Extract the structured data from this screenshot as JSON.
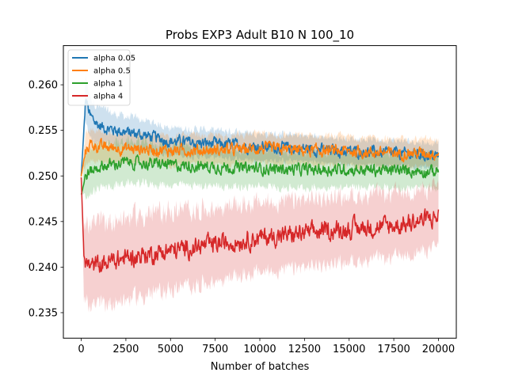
{
  "chart_data": {
    "type": "line",
    "title": "Probs EXP3 Adult B10 N 100_10",
    "xlabel": "Number of batches",
    "ylabel": "",
    "xlim": [
      -1000,
      21000
    ],
    "ylim": [
      0.2322,
      0.2643
    ],
    "xticks": [
      0,
      2500,
      5000,
      7500,
      10000,
      12500,
      15000,
      17500,
      20000
    ],
    "yticks": [
      0.235,
      0.24,
      0.245,
      0.25,
      0.255,
      0.26
    ],
    "ytick_labels": [
      "0.235",
      "0.240",
      "0.245",
      "0.250",
      "0.255",
      "0.260"
    ],
    "grid": false,
    "legend_position": "upper left",
    "shaded_band": "per-series spread around the mean, drawn as light translucent band",
    "series": [
      {
        "name": "alpha 0.05",
        "color": "#1f77b4",
        "x": [
          0,
          250,
          500,
          1000,
          1500,
          2500,
          3500,
          5000,
          7500,
          10000,
          12500,
          15000,
          17500,
          20000
        ],
        "values": [
          0.25,
          0.2585,
          0.2565,
          0.2555,
          0.2552,
          0.2548,
          0.2545,
          0.2538,
          0.2535,
          0.2532,
          0.253,
          0.2527,
          0.2525,
          0.2522
        ],
        "band": [
          0.0,
          0.0025,
          0.0022,
          0.002,
          0.0018,
          0.0017,
          0.0016,
          0.0015,
          0.0015,
          0.0015,
          0.0014,
          0.0014,
          0.0014,
          0.0014
        ]
      },
      {
        "name": "alpha 0.5",
        "color": "#ff7f0e",
        "x": [
          0,
          250,
          500,
          1000,
          2500,
          5000,
          7500,
          10000,
          12500,
          15000,
          17500,
          20000
        ],
        "values": [
          0.25,
          0.2528,
          0.2535,
          0.2532,
          0.253,
          0.2528,
          0.2528,
          0.253,
          0.2528,
          0.2527,
          0.2525,
          0.2525
        ],
        "band": [
          0.0,
          0.0018,
          0.0017,
          0.0017,
          0.0016,
          0.0016,
          0.0016,
          0.0016,
          0.0016,
          0.0016,
          0.0015,
          0.0015
        ]
      },
      {
        "name": "alpha 1",
        "color": "#2ca02c",
        "x": [
          0,
          250,
          500,
          1000,
          2500,
          5000,
          7500,
          10000,
          12500,
          15000,
          17500,
          20000
        ],
        "values": [
          0.248,
          0.25,
          0.2505,
          0.251,
          0.2515,
          0.2512,
          0.251,
          0.2508,
          0.2507,
          0.2507,
          0.2506,
          0.2505
        ],
        "band": [
          0.0,
          0.0025,
          0.0025,
          0.0024,
          0.0023,
          0.0022,
          0.0021,
          0.002,
          0.002,
          0.0019,
          0.0019,
          0.0019
        ]
      },
      {
        "name": "alpha 4",
        "color": "#d62728",
        "x": [
          0,
          150,
          500,
          1000,
          2500,
          5000,
          7500,
          10000,
          12500,
          15000,
          17500,
          20000
        ],
        "values": [
          0.25,
          0.241,
          0.24,
          0.2403,
          0.241,
          0.2418,
          0.2425,
          0.2432,
          0.2437,
          0.2442,
          0.2445,
          0.2455
        ],
        "band": [
          0.0,
          0.004,
          0.0045,
          0.0045,
          0.0045,
          0.0043,
          0.004,
          0.0038,
          0.0037,
          0.0036,
          0.0035,
          0.0033
        ]
      }
    ]
  }
}
